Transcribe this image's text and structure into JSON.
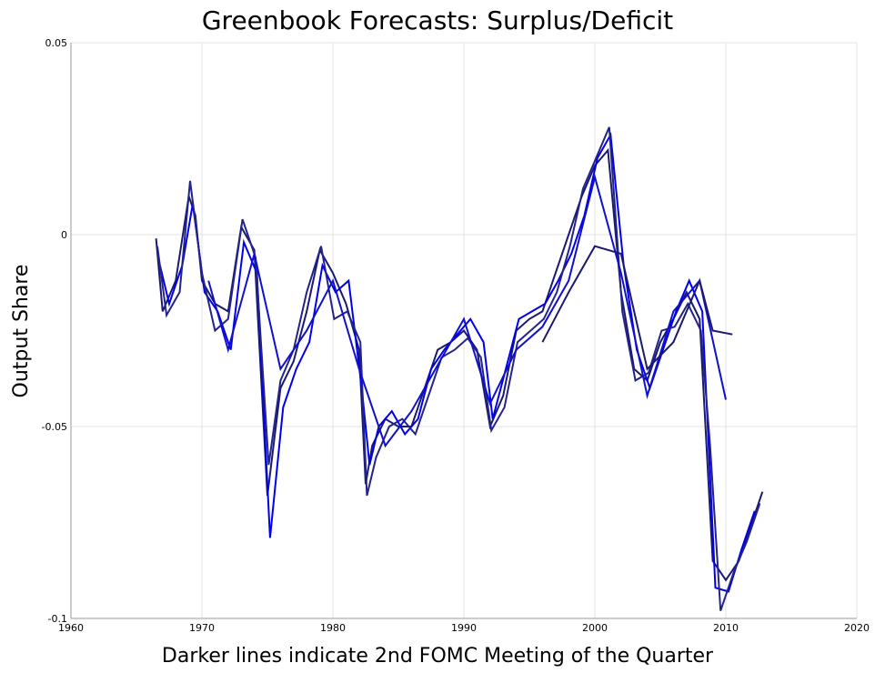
{
  "chart_data": {
    "type": "line",
    "title": "Greenbook Forecasts: Surplus/Deficit",
    "x_label": "Darker lines indicate 2nd FOMC Meeting of the Quarter",
    "y_label": "Output Share",
    "xlim": [
      1960,
      2020
    ],
    "xticks": [
      1960,
      1970,
      1980,
      1990,
      2000,
      2010,
      2020
    ],
    "ylim": [
      -0.1,
      0.05
    ],
    "yticks": [
      0.05,
      0,
      -0.05,
      -0.1
    ],
    "grid": true,
    "series": [
      {
        "color": "#1a1a6e",
        "x": [
          1966.5,
          1967,
          1968,
          1969,
          1969.5,
          1970,
          1971,
          1972,
          1973,
          1974,
          1975,
          1976,
          1977,
          1978,
          1979,
          1980,
          1981,
          1982,
          1982.5,
          1983,
          1984,
          1985,
          1986,
          1987,
          1988,
          1989,
          1990,
          1991,
          1992,
          1993,
          1994,
          1995,
          1996,
          1997,
          1998,
          1999,
          2000,
          2001,
          2002,
          2003,
          2004,
          2005,
          2006,
          2007,
          2008,
          2009,
          2010,
          2011,
          2012,
          2012.8
        ],
        "values": [
          -0.001,
          -0.02,
          -0.012,
          0.01,
          0.005,
          -0.012,
          -0.018,
          -0.02,
          0.002,
          -0.004,
          -0.068,
          -0.04,
          -0.033,
          -0.02,
          -0.004,
          -0.01,
          -0.018,
          -0.03,
          -0.065,
          -0.055,
          -0.048,
          -0.05,
          -0.05,
          -0.04,
          -0.03,
          -0.028,
          -0.025,
          -0.03,
          -0.05,
          -0.042,
          -0.025,
          -0.022,
          -0.02,
          -0.01,
          0.0,
          0.01,
          0.018,
          0.022,
          -0.015,
          -0.035,
          -0.038,
          -0.028,
          -0.022,
          -0.015,
          -0.022,
          -0.085,
          -0.09,
          -0.085,
          -0.075,
          -0.067
        ]
      },
      {
        "color": "#0000ee",
        "x": [
          1966.8,
          1967.5,
          1968.5,
          1969.3,
          1970.2,
          1971.2,
          1972.2,
          1973.2,
          1974.2,
          1975.2,
          1976.2,
          1977.2,
          1978.2,
          1979.2,
          1980.2,
          1981.2,
          1982.2,
          1982.8,
          1983.5,
          1984.5,
          1985.5,
          1986.5,
          1987.5,
          1988.5,
          1989.5,
          1990.5,
          1991.5,
          1992.2,
          1993.2,
          1994.2,
          1995.2,
          1996.2,
          1997.2,
          1998.2,
          1999.2,
          2000.2,
          2001.2,
          2002.2,
          2003.2,
          2004.2,
          2005.2,
          2006.2,
          2007.2,
          2008.2,
          2009.2,
          2010.2,
          2011.2,
          2012.2
        ],
        "values": [
          -0.008,
          -0.018,
          -0.008,
          0.008,
          -0.015,
          -0.02,
          -0.03,
          -0.002,
          -0.01,
          -0.079,
          -0.045,
          -0.035,
          -0.028,
          -0.008,
          -0.015,
          -0.012,
          -0.04,
          -0.06,
          -0.05,
          -0.046,
          -0.052,
          -0.048,
          -0.035,
          -0.03,
          -0.026,
          -0.022,
          -0.028,
          -0.048,
          -0.035,
          -0.022,
          -0.02,
          -0.018,
          -0.012,
          -0.005,
          0.005,
          0.02,
          0.026,
          -0.008,
          -0.03,
          -0.04,
          -0.03,
          -0.02,
          -0.012,
          -0.02,
          -0.092,
          -0.093,
          -0.082,
          -0.072
        ]
      },
      {
        "color": "#23238a",
        "x": [
          1966.6,
          1967.3,
          1968.3,
          1969.1,
          1970,
          1971,
          1972,
          1973.1,
          1974.1,
          1975.1,
          1976,
          1977,
          1978,
          1979.1,
          1980.1,
          1981.1,
          1982.1,
          1982.6,
          1983.3,
          1984.3,
          1985.3,
          1986.3,
          1987.3,
          1988.3,
          1989.3,
          1990.3,
          1991.3,
          1992.1,
          1993.1,
          1994.1,
          1995.1,
          1996.1,
          1997.1,
          1998.1,
          1999.1,
          2000.1,
          2001.1,
          2002.1,
          2003.1,
          2004.1,
          2005.1,
          2006.1,
          2007.1,
          2008.1,
          2008.8,
          2009.6,
          2010.6,
          2011.6,
          2012.6
        ],
        "values": [
          -0.003,
          -0.021,
          -0.015,
          0.014,
          -0.01,
          -0.025,
          -0.022,
          0.004,
          -0.006,
          -0.06,
          -0.038,
          -0.03,
          -0.015,
          -0.003,
          -0.022,
          -0.02,
          -0.028,
          -0.068,
          -0.058,
          -0.05,
          -0.048,
          -0.052,
          -0.042,
          -0.032,
          -0.03,
          -0.027,
          -0.032,
          -0.051,
          -0.045,
          -0.028,
          -0.025,
          -0.022,
          -0.015,
          -0.003,
          0.012,
          0.02,
          0.028,
          -0.02,
          -0.038,
          -0.036,
          -0.025,
          -0.024,
          -0.018,
          -0.025,
          -0.055,
          -0.098,
          -0.088,
          -0.08,
          -0.07
        ]
      },
      {
        "color": "#1010cc",
        "x": [
          1970.5,
          1972,
          1974,
          1976,
          1978,
          1980,
          1982,
          1984,
          1986,
          1988,
          1990,
          1992,
          1994,
          1996,
          1998,
          2000,
          2002,
          2004,
          2006,
          2008,
          2010
        ],
        "values": [
          -0.012,
          -0.03,
          -0.005,
          -0.035,
          -0.025,
          -0.012,
          -0.035,
          -0.055,
          -0.046,
          -0.034,
          -0.022,
          -0.044,
          -0.03,
          -0.024,
          -0.012,
          0.015,
          -0.01,
          -0.042,
          -0.02,
          -0.012,
          -0.043
        ]
      },
      {
        "color": "#1a1a6e",
        "x": [
          1996,
          1998,
          2000,
          2002,
          2004,
          2006,
          2008,
          2009,
          2010.5
        ],
        "values": [
          -0.028,
          -0.015,
          -0.003,
          -0.005,
          -0.035,
          -0.028,
          -0.012,
          -0.025,
          -0.026
        ]
      }
    ]
  }
}
